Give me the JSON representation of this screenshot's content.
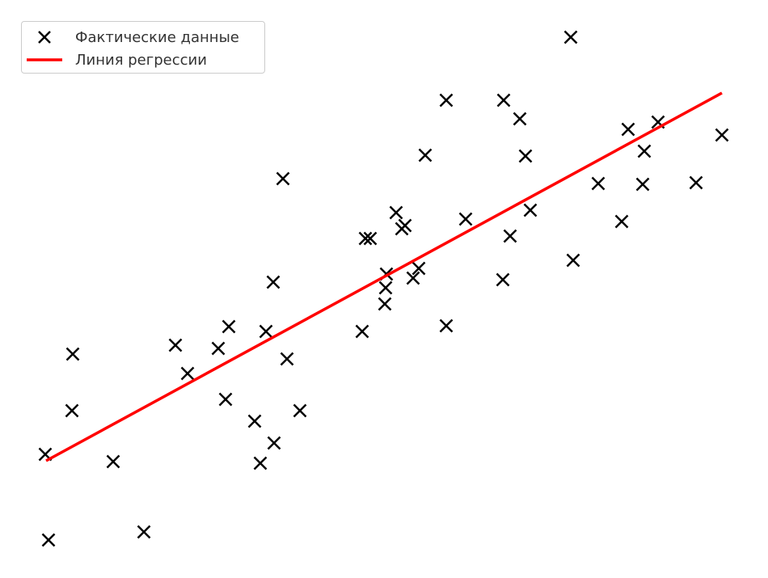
{
  "chart_data": {
    "type": "scatter",
    "title": "",
    "xlabel": "",
    "ylabel": "",
    "axes_visible": false,
    "grid": false,
    "xlim": [
      0,
      85
    ],
    "ylim": [
      0,
      70
    ],
    "legend_placement": "top-left",
    "series": [
      {
        "name": "Фактические данные",
        "kind": "scatter",
        "marker": "x",
        "color": "#000000",
        "points": [
          [
            0.6,
            13.8
          ],
          [
            1.0,
            3.2
          ],
          [
            4.0,
            26.2
          ],
          [
            3.9,
            19.2
          ],
          [
            9.0,
            12.9
          ],
          [
            12.8,
            4.2
          ],
          [
            16.7,
            27.3
          ],
          [
            18.2,
            23.8
          ],
          [
            22.0,
            26.9
          ],
          [
            23.3,
            29.6
          ],
          [
            22.9,
            20.6
          ],
          [
            26.5,
            17.9
          ],
          [
            27.2,
            12.7
          ],
          [
            28.9,
            15.2
          ],
          [
            27.9,
            29.0
          ],
          [
            28.8,
            35.1
          ],
          [
            30.5,
            25.6
          ],
          [
            32.1,
            19.2
          ],
          [
            30.0,
            47.9
          ],
          [
            39.8,
            29.0
          ],
          [
            40.2,
            40.5
          ],
          [
            40.8,
            40.5
          ],
          [
            42.6,
            32.4
          ],
          [
            42.7,
            34.4
          ],
          [
            42.8,
            36.1
          ],
          [
            44.0,
            43.7
          ],
          [
            44.7,
            41.7
          ],
          [
            45.1,
            42.1
          ],
          [
            46.1,
            35.6
          ],
          [
            46.8,
            36.8
          ],
          [
            47.6,
            50.8
          ],
          [
            50.2,
            57.6
          ],
          [
            50.2,
            29.7
          ],
          [
            52.6,
            42.9
          ],
          [
            57.2,
            35.4
          ],
          [
            57.3,
            57.6
          ],
          [
            58.1,
            40.8
          ],
          [
            59.3,
            55.3
          ],
          [
            60.0,
            50.7
          ],
          [
            60.6,
            44.0
          ],
          [
            65.6,
            65.4
          ],
          [
            65.9,
            37.8
          ],
          [
            69.0,
            47.3
          ],
          [
            71.9,
            42.6
          ],
          [
            72.7,
            54.0
          ],
          [
            74.5,
            47.2
          ],
          [
            74.7,
            51.3
          ],
          [
            76.4,
            54.9
          ],
          [
            81.1,
            47.4
          ],
          [
            84.3,
            53.3
          ]
        ]
      },
      {
        "name": "Линия регрессии",
        "kind": "line",
        "color": "#ff0000",
        "points": [
          [
            0.7,
            13.0
          ],
          [
            84.3,
            58.5
          ]
        ]
      }
    ]
  }
}
